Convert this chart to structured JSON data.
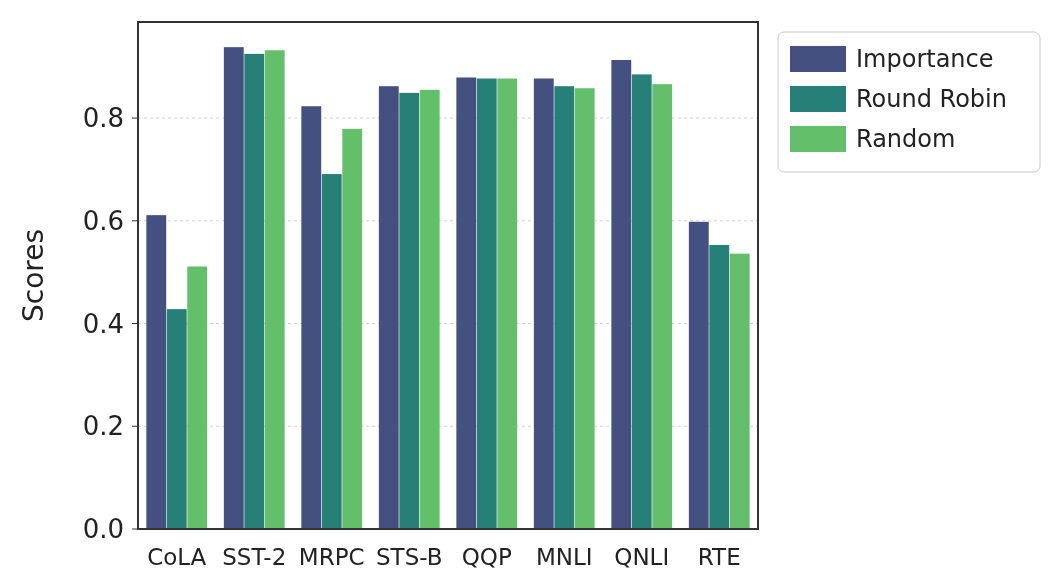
{
  "chart_data": {
    "type": "bar",
    "ylabel": "Scores",
    "categories": [
      "CoLA",
      "SST-2",
      "MRPC",
      "STS-B",
      "QQP",
      "MNLI",
      "QNLI",
      "RTE"
    ],
    "series": [
      {
        "name": "Importance",
        "color": "#44507f",
        "values": [
          0.611,
          0.938,
          0.823,
          0.862,
          0.879,
          0.877,
          0.913,
          0.598
        ]
      },
      {
        "name": "Round Robin",
        "color": "#268078",
        "values": [
          0.428,
          0.925,
          0.691,
          0.849,
          0.877,
          0.862,
          0.885,
          0.553
        ]
      },
      {
        "name": "Random",
        "color": "#64bf6a",
        "values": [
          0.511,
          0.932,
          0.779,
          0.855,
          0.877,
          0.858,
          0.866,
          0.536
        ]
      }
    ],
    "ylim": [
      0,
      0.987
    ],
    "yticks": [
      {
        "value": 0,
        "label": "0.0"
      },
      {
        "value": 0.2,
        "label": "0.2"
      },
      {
        "value": 0.4,
        "label": "0.4"
      },
      {
        "value": 0.6,
        "label": "0.6"
      },
      {
        "value": 0.8,
        "label": "0.8"
      }
    ],
    "grid": "y",
    "legend": "right"
  }
}
